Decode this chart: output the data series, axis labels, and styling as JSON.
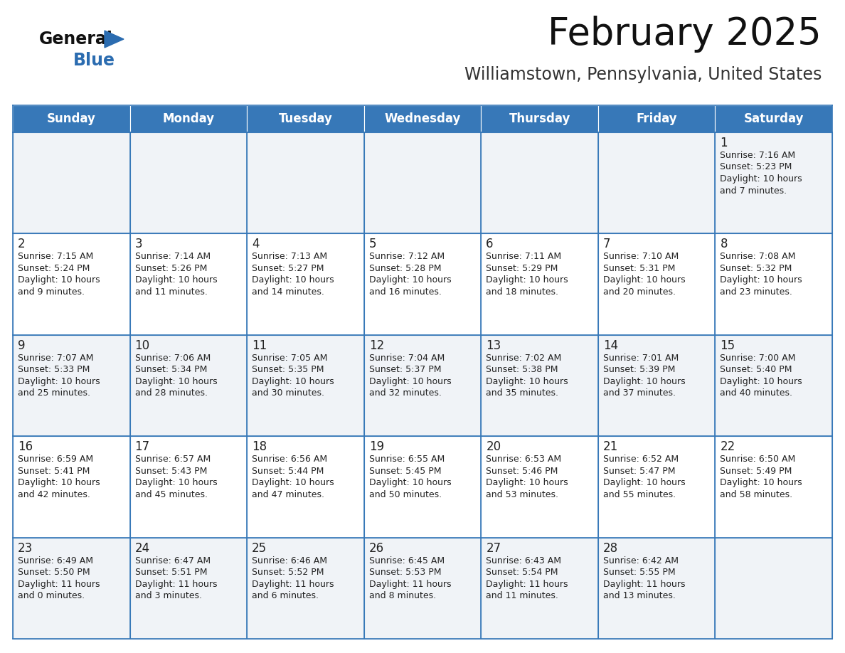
{
  "title": "February 2025",
  "subtitle": "Williamstown, Pennsylvania, United States",
  "header_bg_color": "#3778b8",
  "header_text_color": "#ffffff",
  "grid_line_color": "#3778b8",
  "day_headers": [
    "Sunday",
    "Monday",
    "Tuesday",
    "Wednesday",
    "Thursday",
    "Friday",
    "Saturday"
  ],
  "days": [
    {
      "day": 1,
      "col": 6,
      "row": 0,
      "sunrise": "7:16 AM",
      "sunset": "5:23 PM",
      "daylight_hours": 10,
      "daylight_minutes": 7
    },
    {
      "day": 2,
      "col": 0,
      "row": 1,
      "sunrise": "7:15 AM",
      "sunset": "5:24 PM",
      "daylight_hours": 10,
      "daylight_minutes": 9
    },
    {
      "day": 3,
      "col": 1,
      "row": 1,
      "sunrise": "7:14 AM",
      "sunset": "5:26 PM",
      "daylight_hours": 10,
      "daylight_minutes": 11
    },
    {
      "day": 4,
      "col": 2,
      "row": 1,
      "sunrise": "7:13 AM",
      "sunset": "5:27 PM",
      "daylight_hours": 10,
      "daylight_minutes": 14
    },
    {
      "day": 5,
      "col": 3,
      "row": 1,
      "sunrise": "7:12 AM",
      "sunset": "5:28 PM",
      "daylight_hours": 10,
      "daylight_minutes": 16
    },
    {
      "day": 6,
      "col": 4,
      "row": 1,
      "sunrise": "7:11 AM",
      "sunset": "5:29 PM",
      "daylight_hours": 10,
      "daylight_minutes": 18
    },
    {
      "day": 7,
      "col": 5,
      "row": 1,
      "sunrise": "7:10 AM",
      "sunset": "5:31 PM",
      "daylight_hours": 10,
      "daylight_minutes": 20
    },
    {
      "day": 8,
      "col": 6,
      "row": 1,
      "sunrise": "7:08 AM",
      "sunset": "5:32 PM",
      "daylight_hours": 10,
      "daylight_minutes": 23
    },
    {
      "day": 9,
      "col": 0,
      "row": 2,
      "sunrise": "7:07 AM",
      "sunset": "5:33 PM",
      "daylight_hours": 10,
      "daylight_minutes": 25
    },
    {
      "day": 10,
      "col": 1,
      "row": 2,
      "sunrise": "7:06 AM",
      "sunset": "5:34 PM",
      "daylight_hours": 10,
      "daylight_minutes": 28
    },
    {
      "day": 11,
      "col": 2,
      "row": 2,
      "sunrise": "7:05 AM",
      "sunset": "5:35 PM",
      "daylight_hours": 10,
      "daylight_minutes": 30
    },
    {
      "day": 12,
      "col": 3,
      "row": 2,
      "sunrise": "7:04 AM",
      "sunset": "5:37 PM",
      "daylight_hours": 10,
      "daylight_minutes": 32
    },
    {
      "day": 13,
      "col": 4,
      "row": 2,
      "sunrise": "7:02 AM",
      "sunset": "5:38 PM",
      "daylight_hours": 10,
      "daylight_minutes": 35
    },
    {
      "day": 14,
      "col": 5,
      "row": 2,
      "sunrise": "7:01 AM",
      "sunset": "5:39 PM",
      "daylight_hours": 10,
      "daylight_minutes": 37
    },
    {
      "day": 15,
      "col": 6,
      "row": 2,
      "sunrise": "7:00 AM",
      "sunset": "5:40 PM",
      "daylight_hours": 10,
      "daylight_minutes": 40
    },
    {
      "day": 16,
      "col": 0,
      "row": 3,
      "sunrise": "6:59 AM",
      "sunset": "5:41 PM",
      "daylight_hours": 10,
      "daylight_minutes": 42
    },
    {
      "day": 17,
      "col": 1,
      "row": 3,
      "sunrise": "6:57 AM",
      "sunset": "5:43 PM",
      "daylight_hours": 10,
      "daylight_minutes": 45
    },
    {
      "day": 18,
      "col": 2,
      "row": 3,
      "sunrise": "6:56 AM",
      "sunset": "5:44 PM",
      "daylight_hours": 10,
      "daylight_minutes": 47
    },
    {
      "day": 19,
      "col": 3,
      "row": 3,
      "sunrise": "6:55 AM",
      "sunset": "5:45 PM",
      "daylight_hours": 10,
      "daylight_minutes": 50
    },
    {
      "day": 20,
      "col": 4,
      "row": 3,
      "sunrise": "6:53 AM",
      "sunset": "5:46 PM",
      "daylight_hours": 10,
      "daylight_minutes": 53
    },
    {
      "day": 21,
      "col": 5,
      "row": 3,
      "sunrise": "6:52 AM",
      "sunset": "5:47 PM",
      "daylight_hours": 10,
      "daylight_minutes": 55
    },
    {
      "day": 22,
      "col": 6,
      "row": 3,
      "sunrise": "6:50 AM",
      "sunset": "5:49 PM",
      "daylight_hours": 10,
      "daylight_minutes": 58
    },
    {
      "day": 23,
      "col": 0,
      "row": 4,
      "sunrise": "6:49 AM",
      "sunset": "5:50 PM",
      "daylight_hours": 11,
      "daylight_minutes": 0
    },
    {
      "day": 24,
      "col": 1,
      "row": 4,
      "sunrise": "6:47 AM",
      "sunset": "5:51 PM",
      "daylight_hours": 11,
      "daylight_minutes": 3
    },
    {
      "day": 25,
      "col": 2,
      "row": 4,
      "sunrise": "6:46 AM",
      "sunset": "5:52 PM",
      "daylight_hours": 11,
      "daylight_minutes": 6
    },
    {
      "day": 26,
      "col": 3,
      "row": 4,
      "sunrise": "6:45 AM",
      "sunset": "5:53 PM",
      "daylight_hours": 11,
      "daylight_minutes": 8
    },
    {
      "day": 27,
      "col": 4,
      "row": 4,
      "sunrise": "6:43 AM",
      "sunset": "5:54 PM",
      "daylight_hours": 11,
      "daylight_minutes": 11
    },
    {
      "day": 28,
      "col": 5,
      "row": 4,
      "sunrise": "6:42 AM",
      "sunset": "5:55 PM",
      "daylight_hours": 11,
      "daylight_minutes": 13
    }
  ],
  "num_rows": 5,
  "num_cols": 7,
  "logo_text_general": "General",
  "logo_text_blue": "Blue",
  "logo_triangle_color": "#2b6cb0",
  "title_fontsize": 38,
  "subtitle_fontsize": 17,
  "header_fontsize": 12,
  "day_number_fontsize": 12,
  "cell_text_fontsize": 9,
  "text_color": "#222222",
  "cell_bg_even": "#f0f3f7",
  "cell_bg_odd": "#ffffff"
}
